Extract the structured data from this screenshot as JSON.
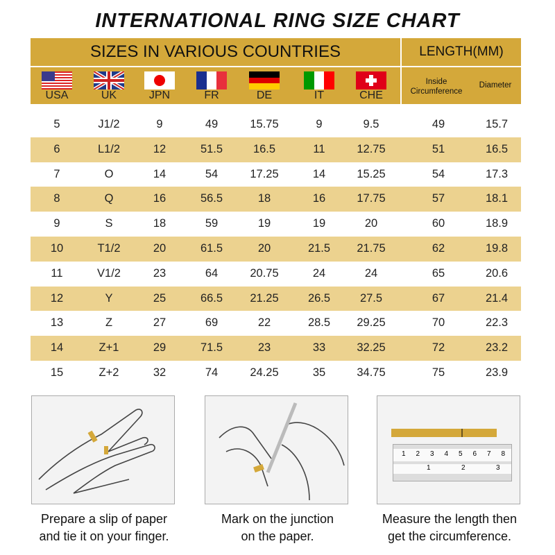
{
  "title": "INTERNATIONAL RING SIZE CHART",
  "header": {
    "countries_label": "SIZES IN VARIOUS COUNTRIES",
    "length_label": "LENGTH(MM)",
    "countries": [
      {
        "name": "USA",
        "flag": "usa-flag"
      },
      {
        "name": "UK",
        "flag": "uk-flag"
      },
      {
        "name": "JPN",
        "flag": "japan-flag"
      },
      {
        "name": "FR",
        "flag": "france-flag"
      },
      {
        "name": "DE",
        "flag": "germany-flag"
      },
      {
        "name": "IT",
        "flag": "italy-flag"
      },
      {
        "name": "CHE",
        "flag": "switzerland-flag"
      }
    ],
    "inside_label": "Inside",
    "circumference_label": "Circumference",
    "diameter_label": "Diameter"
  },
  "colors": {
    "header_gold": "#d4a83a",
    "row_alt": "#ecd28f"
  },
  "rows": [
    [
      "5",
      "J1/2",
      "9",
      "49",
      "15.75",
      "9",
      "9.5",
      "49",
      "15.7"
    ],
    [
      "6",
      "L1/2",
      "12",
      "51.5",
      "16.5",
      "11",
      "12.75",
      "51",
      "16.5"
    ],
    [
      "7",
      "O",
      "14",
      "54",
      "17.25",
      "14",
      "15.25",
      "54",
      "17.3"
    ],
    [
      "8",
      "Q",
      "16",
      "56.5",
      "18",
      "16",
      "17.75",
      "57",
      "18.1"
    ],
    [
      "9",
      "S",
      "18",
      "59",
      "19",
      "19",
      "20",
      "60",
      "18.9"
    ],
    [
      "10",
      "T1/2",
      "20",
      "61.5",
      "20",
      "21.5",
      "21.75",
      "62",
      "19.8"
    ],
    [
      "11",
      "V1/2",
      "23",
      "64",
      "20.75",
      "24",
      "24",
      "65",
      "20.6"
    ],
    [
      "12",
      "Y",
      "25",
      "66.5",
      "21.25",
      "26.5",
      "27.5",
      "67",
      "21.4"
    ],
    [
      "13",
      "Z",
      "27",
      "69",
      "22",
      "28.5",
      "29.25",
      "70",
      "22.3"
    ],
    [
      "14",
      "Z+1",
      "29",
      "71.5",
      "23",
      "33",
      "32.25",
      "72",
      "23.2"
    ],
    [
      "15",
      "Z+2",
      "32",
      "74",
      "24.25",
      "35",
      "34.75",
      "75",
      "23.9"
    ]
  ],
  "steps": [
    {
      "line1": "Prepare a slip of paper",
      "line2": "and tie it on your finger."
    },
    {
      "line1": "Mark on the junction",
      "line2": "on the paper."
    },
    {
      "line1": "Measure the length then",
      "line2": "get the circumference."
    }
  ],
  "ruler": {
    "cm_ticks": [
      "1",
      "2",
      "3",
      "4",
      "5",
      "6",
      "7",
      "8"
    ],
    "inch_ticks": [
      "1",
      "2",
      "3"
    ]
  }
}
